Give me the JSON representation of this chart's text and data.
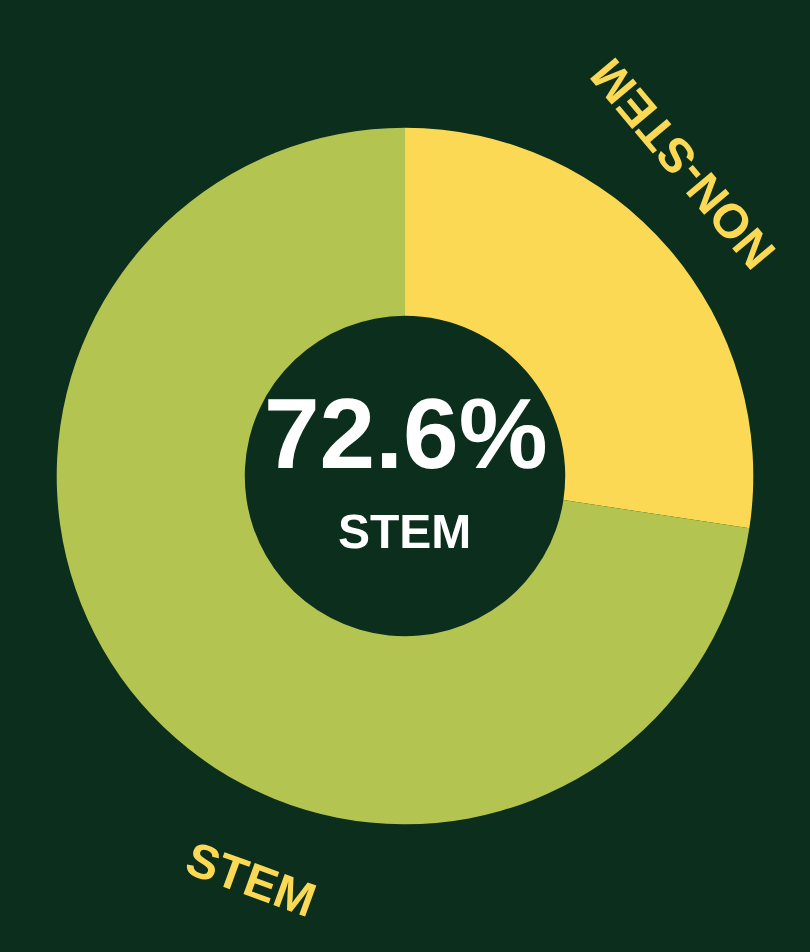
{
  "chart_data": {
    "type": "donut",
    "categories": [
      "NON-STEM",
      "STEM"
    ],
    "values": [
      27.4,
      72.6
    ],
    "colors": [
      "#fcd955",
      "#b3c451"
    ],
    "annotations": [
      "72.6%",
      "STEM"
    ],
    "legend": false
  }
}
